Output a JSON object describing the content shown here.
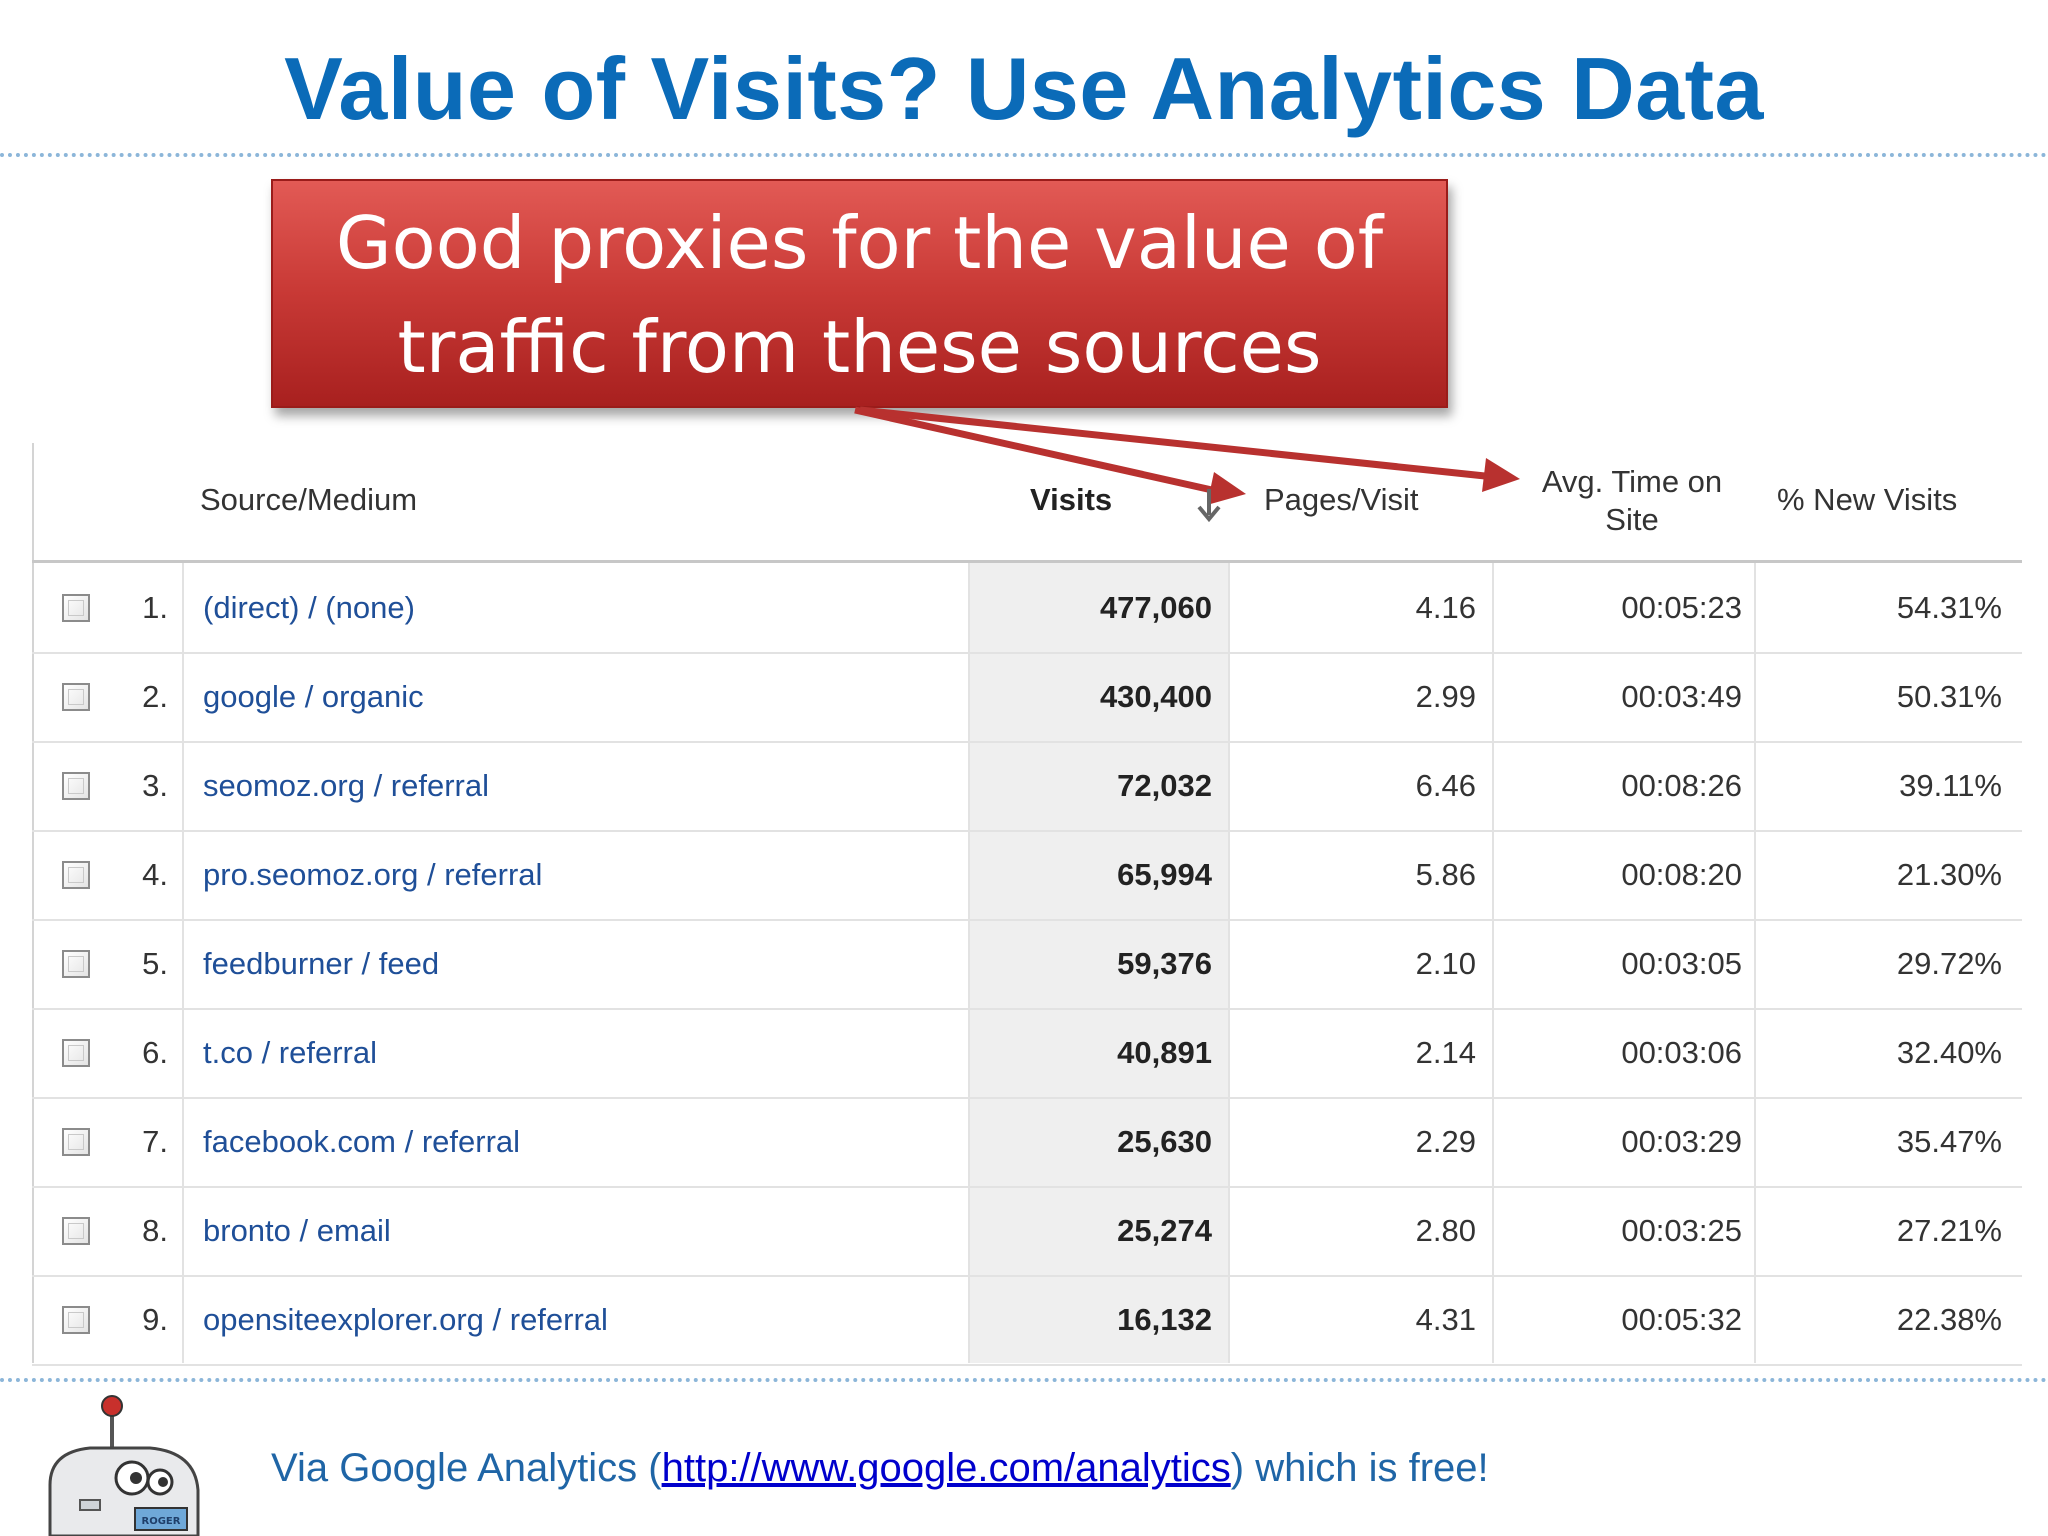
{
  "title": "Value of Visits? Use Analytics Data",
  "callout": {
    "line1": "Good proxies for the value of",
    "line2": "traffic from these sources"
  },
  "table": {
    "headers": {
      "source": "Source/Medium",
      "visits": "Visits",
      "pages_per_visit": "Pages/Visit",
      "avg_time_line1": "Avg. Time on",
      "avg_time_line2": "Site",
      "new_visits": "% New Visits"
    },
    "rows": [
      {
        "index": "1.",
        "source": "(direct) / (none)",
        "visits": "477,060",
        "pages_per_visit": "4.16",
        "avg_time": "00:05:23",
        "new_visits": "54.31%"
      },
      {
        "index": "2.",
        "source": "google / organic",
        "visits": "430,400",
        "pages_per_visit": "2.99",
        "avg_time": "00:03:49",
        "new_visits": "50.31%"
      },
      {
        "index": "3.",
        "source": "seomoz.org / referral",
        "visits": "72,032",
        "pages_per_visit": "6.46",
        "avg_time": "00:08:26",
        "new_visits": "39.11%"
      },
      {
        "index": "4.",
        "source": "pro.seomoz.org / referral",
        "visits": "65,994",
        "pages_per_visit": "5.86",
        "avg_time": "00:08:20",
        "new_visits": "21.30%"
      },
      {
        "index": "5.",
        "source": "feedburner / feed",
        "visits": "59,376",
        "pages_per_visit": "2.10",
        "avg_time": "00:03:05",
        "new_visits": "29.72%"
      },
      {
        "index": "6.",
        "source": "t.co / referral",
        "visits": "40,891",
        "pages_per_visit": "2.14",
        "avg_time": "00:03:06",
        "new_visits": "32.40%"
      },
      {
        "index": "7.",
        "source": "facebook.com / referral",
        "visits": "25,630",
        "pages_per_visit": "2.29",
        "avg_time": "00:03:29",
        "new_visits": "35.47%"
      },
      {
        "index": "8.",
        "source": "bronto / email",
        "visits": "25,274",
        "pages_per_visit": "2.80",
        "avg_time": "00:03:25",
        "new_visits": "27.21%"
      },
      {
        "index": "9.",
        "source": "opensiteexplorer.org / referral",
        "visits": "16,132",
        "pages_per_visit": "4.31",
        "avg_time": "00:05:32",
        "new_visits": "22.38%"
      }
    ]
  },
  "footer": {
    "prefix": "Via Google Analytics (",
    "link_text": "http://www.google.com/analytics",
    "suffix": ") which is free!"
  },
  "mascot": {
    "badge_text": "ROGER"
  },
  "colors": {
    "title": "#0b6bb8",
    "callout_red": "#c93a36",
    "link": "#1f4f98",
    "arrow": "#c0393a"
  },
  "icons": {
    "sort": "sort-descending-icon",
    "checkbox": "checkbox-icon",
    "mascot": "robot-mascot-icon"
  }
}
